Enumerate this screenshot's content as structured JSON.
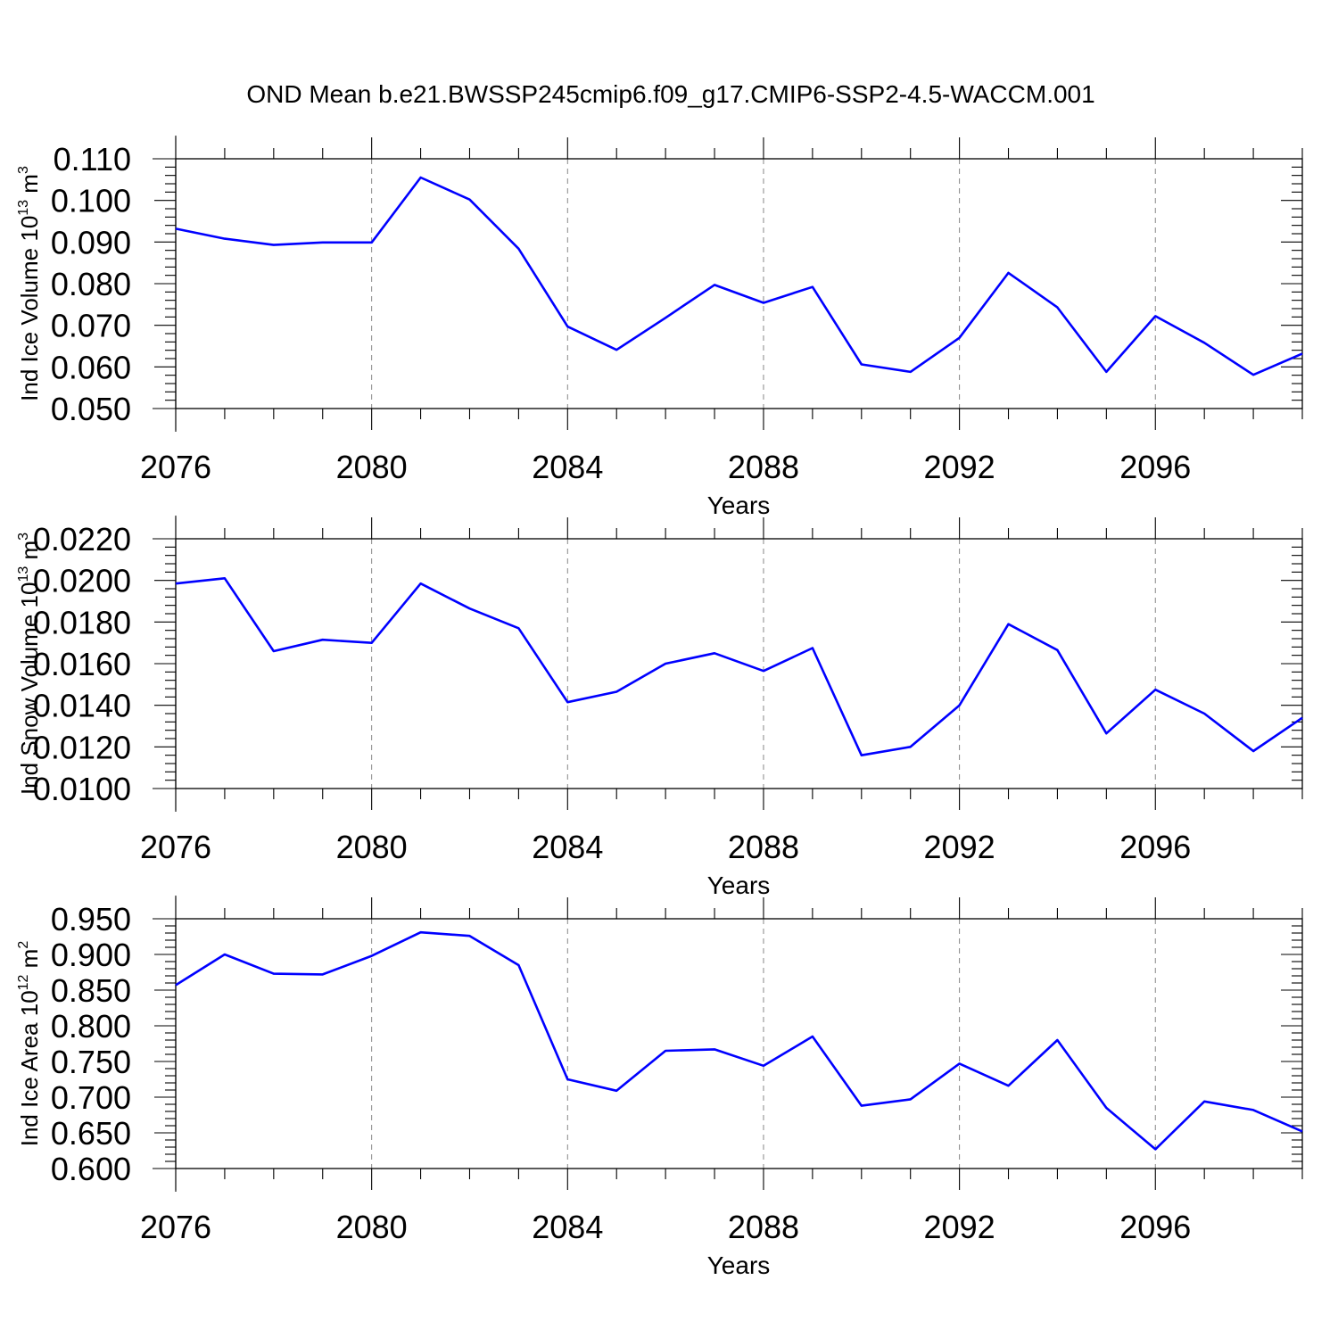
{
  "title": "OND Mean b.e21.BWSSP245cmip6.f09_g17.CMIP6-SSP2-4.5-WACCM.001",
  "line_color": "#0000ff",
  "chart_data": [
    {
      "type": "line",
      "xlabel": "Years",
      "ylabel_main": "Ind Ice Volume 10",
      "ylabel_exp": "13",
      "ylabel_unit": " m",
      "ylabel_unit_exp": "3",
      "xlim": [
        2076,
        2099
      ],
      "xticks": [
        2076,
        2080,
        2084,
        2088,
        2092,
        2096
      ],
      "ylim": [
        0.05,
        0.11
      ],
      "yticks": [
        0.05,
        0.06,
        0.07,
        0.08,
        0.09,
        0.1,
        0.11
      ],
      "ytick_labels": [
        "0.050",
        "0.060",
        "0.070",
        "0.080",
        "0.090",
        "0.100",
        "0.110"
      ],
      "grid": "vertical dashed at major x ticks",
      "x": [
        2076,
        2077,
        2078,
        2079,
        2080,
        2081,
        2082,
        2083,
        2084,
        2085,
        2086,
        2087,
        2088,
        2089,
        2090,
        2091,
        2092,
        2093,
        2094,
        2095,
        2096,
        2097,
        2098,
        2099
      ],
      "series": [
        {
          "values": [
            0.0932,
            0.0908,
            0.0893,
            0.0899,
            0.0899,
            0.1055,
            0.1002,
            0.0884,
            0.0697,
            0.0641,
            0.0718,
            0.0797,
            0.0754,
            0.0792,
            0.0606,
            0.0588,
            0.067,
            0.0826,
            0.0743,
            0.0588,
            0.0722,
            0.0658,
            0.0581,
            0.0632
          ]
        }
      ]
    },
    {
      "type": "line",
      "xlabel": "Years",
      "ylabel_main": "Ind Snow Volume 10",
      "ylabel_exp": "13",
      "ylabel_unit": " m",
      "ylabel_unit_exp": "3",
      "xlim": [
        2076,
        2099
      ],
      "xticks": [
        2076,
        2080,
        2084,
        2088,
        2092,
        2096
      ],
      "ylim": [
        0.01,
        0.022
      ],
      "yticks": [
        0.01,
        0.012,
        0.014,
        0.016,
        0.018,
        0.02,
        0.022
      ],
      "ytick_labels": [
        "0.0100",
        "0.0120",
        "0.0140",
        "0.0160",
        "0.0180",
        "0.0200",
        "0.0220"
      ],
      "grid": "vertical dashed at major x ticks",
      "x": [
        2076,
        2077,
        2078,
        2079,
        2080,
        2081,
        2082,
        2083,
        2084,
        2085,
        2086,
        2087,
        2088,
        2089,
        2090,
        2091,
        2092,
        2093,
        2094,
        2095,
        2096,
        2097,
        2098,
        2099
      ],
      "series": [
        {
          "values": [
            0.01985,
            0.0201,
            0.0166,
            0.01715,
            0.017,
            0.01985,
            0.01865,
            0.0177,
            0.01415,
            0.01465,
            0.016,
            0.0165,
            0.01565,
            0.01675,
            0.0116,
            0.012,
            0.014,
            0.0179,
            0.01665,
            0.01265,
            0.01475,
            0.0136,
            0.0118,
            0.0134
          ]
        }
      ]
    },
    {
      "type": "line",
      "xlabel": "Years",
      "ylabel_main": "Ind Ice Area 10",
      "ylabel_exp": "12",
      "ylabel_unit": " m",
      "ylabel_unit_exp": "2",
      "xlim": [
        2076,
        2099
      ],
      "xticks": [
        2076,
        2080,
        2084,
        2088,
        2092,
        2096
      ],
      "ylim": [
        0.6,
        0.95
      ],
      "yticks": [
        0.6,
        0.65,
        0.7,
        0.75,
        0.8,
        0.85,
        0.9,
        0.95
      ],
      "ytick_labels": [
        "0.600",
        "0.650",
        "0.700",
        "0.750",
        "0.800",
        "0.850",
        "0.900",
        "0.950"
      ],
      "grid": "vertical dashed at major x ticks",
      "x": [
        2076,
        2077,
        2078,
        2079,
        2080,
        2081,
        2082,
        2083,
        2084,
        2085,
        2086,
        2087,
        2088,
        2089,
        2090,
        2091,
        2092,
        2093,
        2094,
        2095,
        2096,
        2097,
        2098,
        2099
      ],
      "series": [
        {
          "values": [
            0.857,
            0.9,
            0.873,
            0.872,
            0.898,
            0.931,
            0.926,
            0.885,
            0.725,
            0.709,
            0.765,
            0.767,
            0.744,
            0.785,
            0.688,
            0.697,
            0.747,
            0.716,
            0.78,
            0.685,
            0.627,
            0.694,
            0.682,
            0.652
          ]
        }
      ]
    }
  ]
}
